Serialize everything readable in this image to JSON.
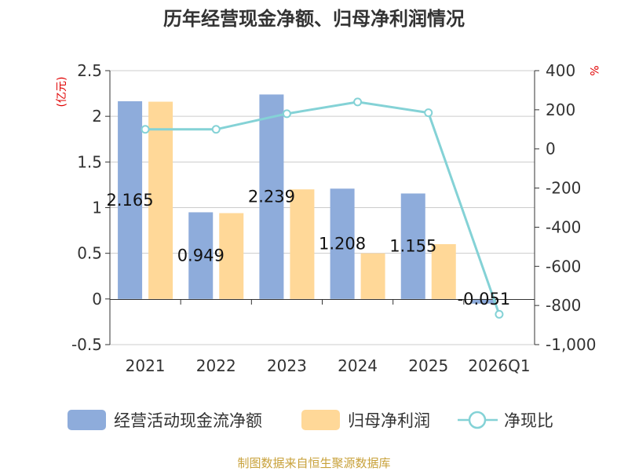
{
  "chart_data": {
    "type": "bar",
    "title": "历年经营现金净额、归母净利润情况",
    "categories": [
      "2021",
      "2022",
      "2023",
      "2024",
      "2025",
      "2026Q1"
    ],
    "left_axis": {
      "unit": "(亿元)",
      "ylim": [
        -0.5,
        2.5
      ],
      "ticks": [
        "2.5",
        "2",
        "1.5",
        "1",
        "0.5",
        "0",
        "-0.5"
      ],
      "tick_values": [
        2.5,
        2,
        1.5,
        1,
        0.5,
        0,
        -0.5
      ]
    },
    "right_axis": {
      "unit": "%",
      "ylim": [
        -1000,
        400
      ],
      "ticks": [
        "400",
        "200",
        "0",
        "-200",
        "-400",
        "-600",
        "-800",
        "-1,000"
      ],
      "tick_values": [
        400,
        200,
        0,
        -200,
        -400,
        -600,
        -800,
        -1000
      ]
    },
    "grid": true,
    "legend_position": "bottom",
    "series": [
      {
        "name": "经营活动现金流净额",
        "kind": "bar",
        "axis": "left",
        "color": "#8eacdb",
        "values": [
          2.165,
          0.949,
          2.239,
          1.208,
          1.155,
          -0.051
        ],
        "labels": [
          "2.165",
          "0.949",
          "2.239",
          "1.208",
          "1.155",
          "-0.051"
        ]
      },
      {
        "name": "归母净利润",
        "kind": "bar",
        "axis": "left",
        "color": "#ffd898",
        "values": [
          2.16,
          0.94,
          1.2,
          0.5,
          0.6,
          null
        ]
      },
      {
        "name": "净现比",
        "kind": "line",
        "axis": "right",
        "color": "#84d2d6",
        "values": [
          100,
          100,
          180,
          240,
          185,
          -845
        ]
      }
    ],
    "source": "制图数据来自恒生聚源数据库"
  }
}
